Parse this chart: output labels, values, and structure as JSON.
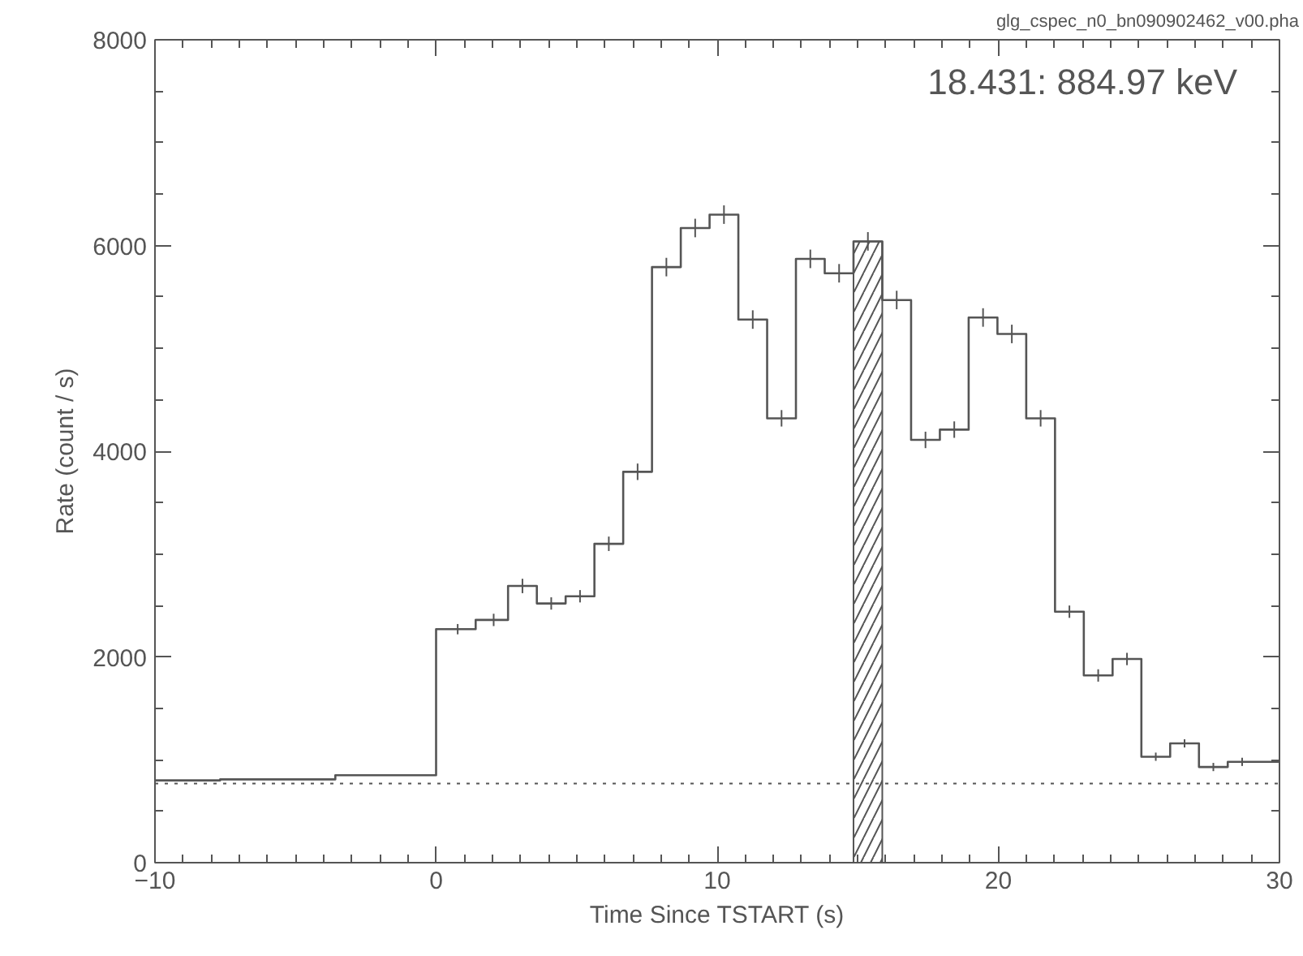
{
  "chart_data": {
    "type": "step",
    "xlabel": "Time Since TSTART (s)",
    "ylabel": "Rate (count / s)",
    "annotations": [
      "glg_cspec_n0_bn090902462_v00.pha",
      "18.431: 884.97 keV"
    ],
    "x": [
      -8.96,
      -6.4,
      -0.768,
      0.768,
      2.048,
      3.072,
      4.096,
      5.12,
      6.144,
      7.168,
      8.192,
      9.216,
      10.24,
      11.264,
      12.288,
      13.312,
      14.336,
      15.36,
      16.384,
      17.408,
      18.432,
      19.456,
      20.48,
      21.504,
      22.528,
      23.552,
      24.576,
      25.6,
      26.624,
      27.648,
      28.672
    ],
    "series": [
      {
        "color": "#555555",
        "values": [
          800,
          810,
          850,
          2270,
          2360,
          2690,
          2520,
          2590,
          3100,
          3800,
          5790,
          6170,
          6300,
          5280,
          4320,
          5870,
          5730,
          6040,
          5470,
          4110,
          4210,
          5300,
          5140,
          4320,
          2440,
          1820,
          1980,
          1030,
          1160,
          930,
          980
        ],
        "errors": [
          null,
          null,
          null,
          50,
          60,
          70,
          60,
          60,
          70,
          80,
          90,
          90,
          90,
          90,
          80,
          90,
          90,
          90,
          90,
          80,
          80,
          90,
          90,
          80,
          60,
          60,
          60,
          40,
          40,
          40,
          40
        ]
      }
    ],
    "xlim": [
      -10,
      30
    ],
    "ylim": [
      0,
      8000
    ],
    "xticks": [
      -10,
      0,
      10,
      20,
      30
    ],
    "yticks": [
      0,
      2000,
      4000,
      6000,
      8000
    ],
    "ref_lines": [
      {
        "axis": "y",
        "value": 770,
        "line_style": "dotted",
        "color": "#555555"
      }
    ],
    "bands": [
      {
        "axis": "x",
        "from": 14.848,
        "to": 15.872,
        "color": "#555555"
      }
    ],
    "grid": false
  }
}
